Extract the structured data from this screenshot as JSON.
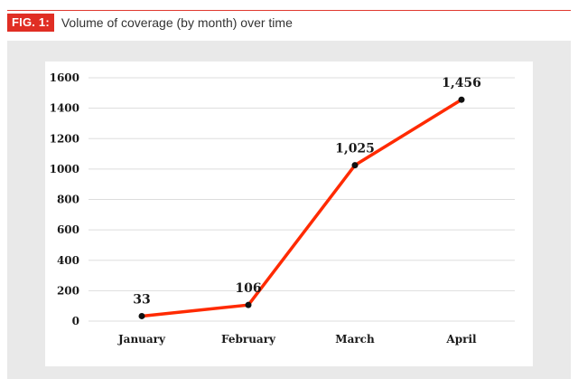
{
  "figure": {
    "badge": "FIG. 1:",
    "caption": "Volume of coverage (by month) over time"
  },
  "colors": {
    "accent": "#e02e24",
    "line": "#ff2a00",
    "marker": "#111111",
    "gridline": "#dddddd",
    "chart_background": "#e9e9e9"
  },
  "chart_data": {
    "type": "line",
    "title": "",
    "xlabel": "",
    "ylabel": "",
    "categories": [
      "January",
      "February",
      "March",
      "April"
    ],
    "series": [
      {
        "values": [
          33,
          106,
          1025,
          1456
        ],
        "data_labels": [
          "33",
          "106",
          "1,025",
          "1,456"
        ]
      }
    ],
    "ylim": [
      0,
      1600
    ],
    "yticks": [
      0,
      200,
      400,
      600,
      800,
      1000,
      1200,
      1400,
      1600
    ],
    "grid": true,
    "legend": "none"
  }
}
